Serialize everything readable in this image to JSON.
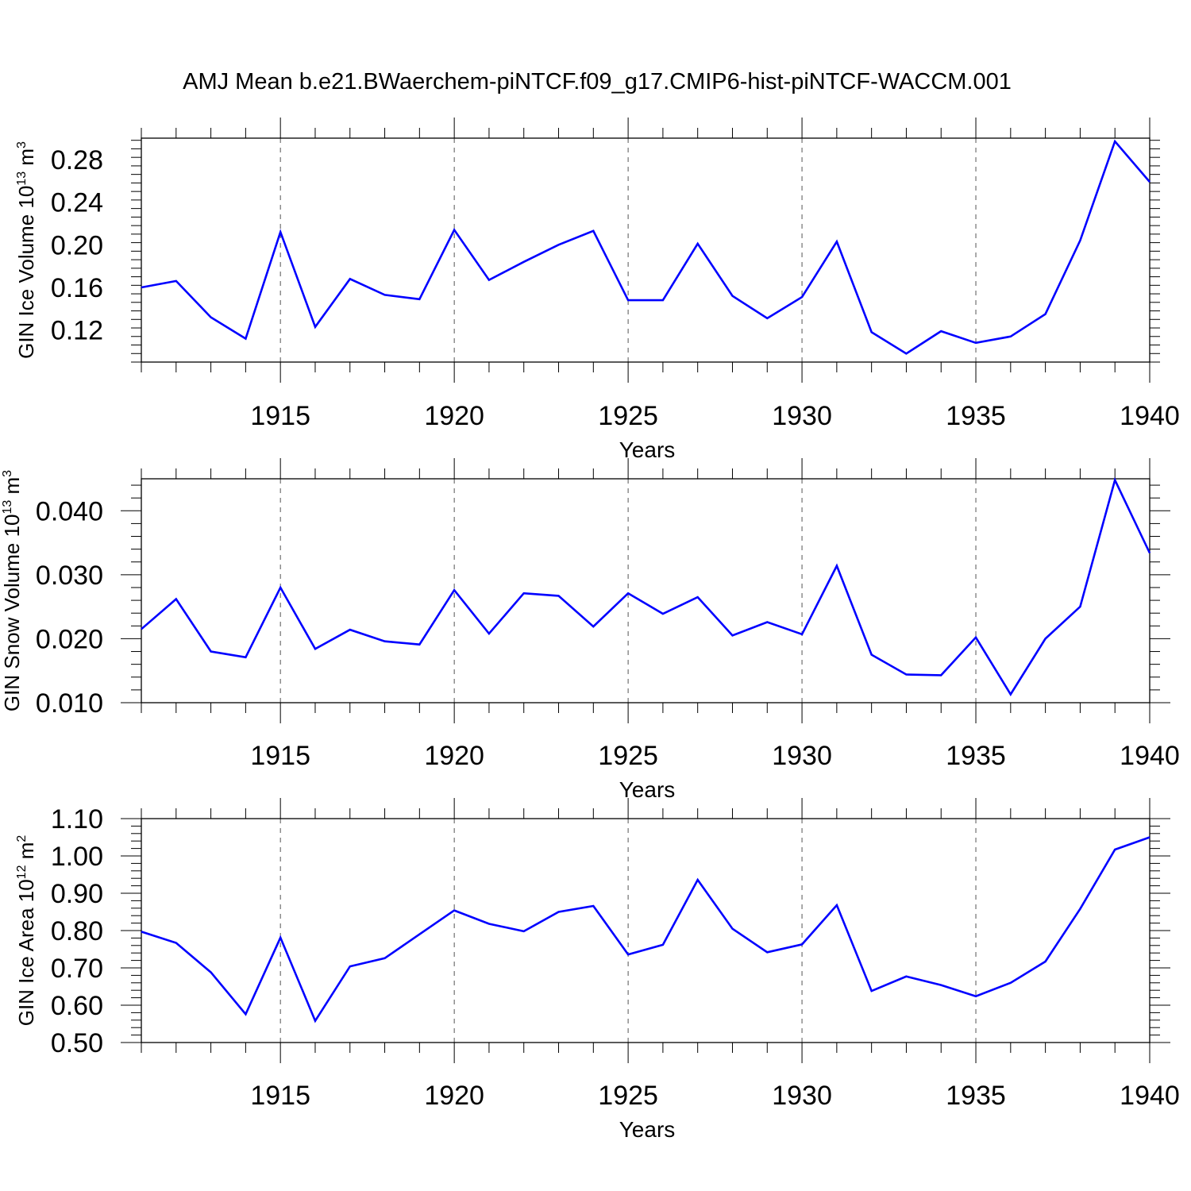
{
  "title": "AMJ Mean b.e21.BWaerchem-piNTCF.f09_g17.CMIP6-hist-piNTCF-WACCM.001",
  "chart_data": [
    {
      "type": "line",
      "title": "AMJ Mean b.e21.BWaerchem-piNTCF.f09_g17.CMIP6-hist-piNTCF-WACCM.001",
      "ylabel": "GIN Ice Volume 10",
      "ylabel_sup1": "13",
      "ylabel_unit": " m",
      "ylabel_sup2": "3",
      "xlabel": "Years",
      "xlim": [
        1911,
        1940
      ],
      "ylim": [
        0.09,
        0.3
      ],
      "xticks": [
        1915,
        1920,
        1925,
        1930,
        1935,
        1940
      ],
      "xtick_labels": [
        "1915",
        "1920",
        "1925",
        "1930",
        "1935",
        "1940"
      ],
      "yticks": [
        0.12,
        0.16,
        0.2,
        0.24,
        0.28
      ],
      "ytick_labels": [
        "0.12",
        "0.16",
        "0.20",
        "0.24",
        "0.28"
      ],
      "grid": "vertical dashed at major x ticks",
      "color": "#0000ff",
      "x": [
        1911,
        1912,
        1913,
        1914,
        1915,
        1916,
        1917,
        1918,
        1919,
        1920,
        1921,
        1922,
        1923,
        1924,
        1925,
        1926,
        1927,
        1928,
        1929,
        1930,
        1931,
        1932,
        1933,
        1934,
        1935,
        1936,
        1937,
        1938,
        1939,
        1940
      ],
      "values": [
        0.16,
        0.166,
        0.132,
        0.112,
        0.212,
        0.123,
        0.168,
        0.153,
        0.149,
        0.214,
        0.167,
        0.184,
        0.2,
        0.213,
        0.148,
        0.148,
        0.201,
        0.152,
        0.131,
        0.151,
        0.203,
        0.118,
        0.098,
        0.119,
        0.108,
        0.114,
        0.135,
        0.204,
        0.297,
        0.259
      ]
    },
    {
      "type": "line",
      "ylabel": "GIN Snow Volume 10",
      "ylabel_sup1": "13",
      "ylabel_unit": " m",
      "ylabel_sup2": "3",
      "xlabel": "Years",
      "xlim": [
        1911,
        1940
      ],
      "ylim": [
        0.01,
        0.045
      ],
      "xticks": [
        1915,
        1920,
        1925,
        1930,
        1935,
        1940
      ],
      "xtick_labels": [
        "1915",
        "1920",
        "1925",
        "1930",
        "1935",
        "1940"
      ],
      "yticks": [
        0.01,
        0.02,
        0.03,
        0.04
      ],
      "ytick_labels": [
        "0.010",
        "0.020",
        "0.030",
        "0.040"
      ],
      "grid": "vertical dashed at major x ticks",
      "color": "#0000ff",
      "x": [
        1911,
        1912,
        1913,
        1914,
        1915,
        1916,
        1917,
        1918,
        1919,
        1920,
        1921,
        1922,
        1923,
        1924,
        1925,
        1926,
        1927,
        1928,
        1929,
        1930,
        1931,
        1932,
        1933,
        1934,
        1935,
        1936,
        1937,
        1938,
        1939,
        1940
      ],
      "values": [
        0.0215,
        0.0262,
        0.018,
        0.0171,
        0.028,
        0.0184,
        0.0214,
        0.0196,
        0.0191,
        0.0276,
        0.0208,
        0.0271,
        0.0267,
        0.0219,
        0.0271,
        0.0239,
        0.0265,
        0.0205,
        0.0226,
        0.0207,
        0.0314,
        0.0175,
        0.0144,
        0.0143,
        0.0202,
        0.0113,
        0.02,
        0.025,
        0.0448,
        0.0334
      ]
    },
    {
      "type": "line",
      "ylabel": "GIN Ice Area 10",
      "ylabel_sup1": "12",
      "ylabel_unit": " m",
      "ylabel_sup2": "2",
      "xlabel": "Years",
      "xlim": [
        1911,
        1940
      ],
      "ylim": [
        0.5,
        1.1
      ],
      "xticks": [
        1915,
        1920,
        1925,
        1930,
        1935,
        1940
      ],
      "xtick_labels": [
        "1915",
        "1920",
        "1925",
        "1930",
        "1935",
        "1940"
      ],
      "yticks": [
        0.5,
        0.6,
        0.7,
        0.8,
        0.9,
        1.0,
        1.1
      ],
      "ytick_labels": [
        "0.50",
        "0.60",
        "0.70",
        "0.80",
        "0.90",
        "1.00",
        "1.10"
      ],
      "grid": "vertical dashed at major x ticks",
      "color": "#0000ff",
      "x": [
        1911,
        1912,
        1913,
        1914,
        1915,
        1916,
        1917,
        1918,
        1919,
        1920,
        1921,
        1922,
        1923,
        1924,
        1925,
        1926,
        1927,
        1928,
        1929,
        1930,
        1931,
        1932,
        1933,
        1934,
        1935,
        1936,
        1937,
        1938,
        1939,
        1940
      ],
      "values": [
        0.797,
        0.767,
        0.688,
        0.576,
        0.781,
        0.558,
        0.704,
        0.726,
        0.79,
        0.854,
        0.818,
        0.798,
        0.85,
        0.866,
        0.736,
        0.762,
        0.936,
        0.805,
        0.742,
        0.763,
        0.868,
        0.638,
        0.677,
        0.654,
        0.624,
        0.66,
        0.717,
        0.858,
        1.017,
        1.05
      ]
    }
  ]
}
